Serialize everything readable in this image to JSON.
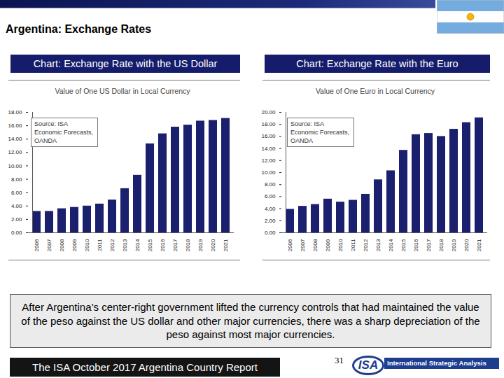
{
  "slide": {
    "title": "Argentina: Exchange Rates",
    "caption": "After Argentina’s center-right government lifted the currency controls that had maintained the value of the peso against the US dollar and other major currencies, there was a sharp depreciation of the peso against most major currencies.",
    "footer": "The ISA October 2017 Argentina Country Report",
    "page_number": "31",
    "logo": "ISA",
    "logo_text": "International Strategic Analysis"
  },
  "chart_data": [
    {
      "type": "bar",
      "title": "Chart: Exchange Rate with the US Dollar",
      "subtitle": "Value of One US Dollar in Local Currency",
      "annotations": [
        "Source: ISA Economic Forecasts, OANDA"
      ],
      "categories": [
        "2006",
        "2007",
        "2008",
        "2009",
        "2010",
        "2011",
        "2012",
        "2013",
        "2014",
        "2015",
        "2016",
        "2017",
        "2018",
        "2019",
        "2020",
        "2021"
      ],
      "values": [
        3.2,
        3.2,
        3.6,
        3.8,
        4.0,
        4.3,
        4.9,
        6.6,
        8.6,
        13.3,
        14.8,
        15.8,
        16.1,
        16.7,
        16.8,
        17.1
      ],
      "color": "#1a1f6e",
      "ylim": [
        0,
        18
      ],
      "yticks": [
        {
          "value": 0,
          "label": "0.00"
        },
        {
          "value": 2,
          "label": "2.00"
        },
        {
          "value": 4,
          "label": "4.00"
        },
        {
          "value": 6,
          "label": "6.00"
        },
        {
          "value": 8,
          "label": "8.00"
        },
        {
          "value": 10,
          "label": "10.00"
        },
        {
          "value": 12,
          "label": "12.00"
        },
        {
          "value": 14,
          "label": "14.00"
        },
        {
          "value": 16,
          "label": "16.00"
        },
        {
          "value": 18,
          "label": "18.00"
        }
      ],
      "grid": false
    },
    {
      "type": "bar",
      "title": "Chart: Exchange Rate with the Euro",
      "subtitle": "Value of One Euro in Local Currency",
      "annotations": [
        "Source: ISA Economic Forecasts, OANDA"
      ],
      "categories": [
        "2006",
        "2007",
        "2008",
        "2009",
        "2010",
        "2011",
        "2012",
        "2013",
        "2014",
        "2015",
        "2016",
        "2017",
        "2018",
        "2019",
        "2020",
        "2021"
      ],
      "values": [
        3.9,
        4.4,
        4.7,
        5.6,
        5.1,
        5.4,
        6.4,
        8.8,
        10.3,
        13.7,
        16.3,
        16.5,
        16.0,
        17.2,
        18.3,
        19.1
      ],
      "color": "#1a1f6e",
      "ylim": [
        0,
        20
      ],
      "yticks": [
        {
          "value": 0,
          "label": "0.00"
        },
        {
          "value": 2,
          "label": "2.00"
        },
        {
          "value": 4,
          "label": "4.00"
        },
        {
          "value": 6,
          "label": "6.00"
        },
        {
          "value": 8,
          "label": "8.00"
        },
        {
          "value": 10,
          "label": "10.00"
        },
        {
          "value": 12,
          "label": "12.00"
        },
        {
          "value": 14,
          "label": "14.00"
        },
        {
          "value": 16,
          "label": "16.00"
        },
        {
          "value": 18,
          "label": "18.00"
        },
        {
          "value": 20,
          "label": "20.00"
        }
      ],
      "grid": false
    }
  ]
}
